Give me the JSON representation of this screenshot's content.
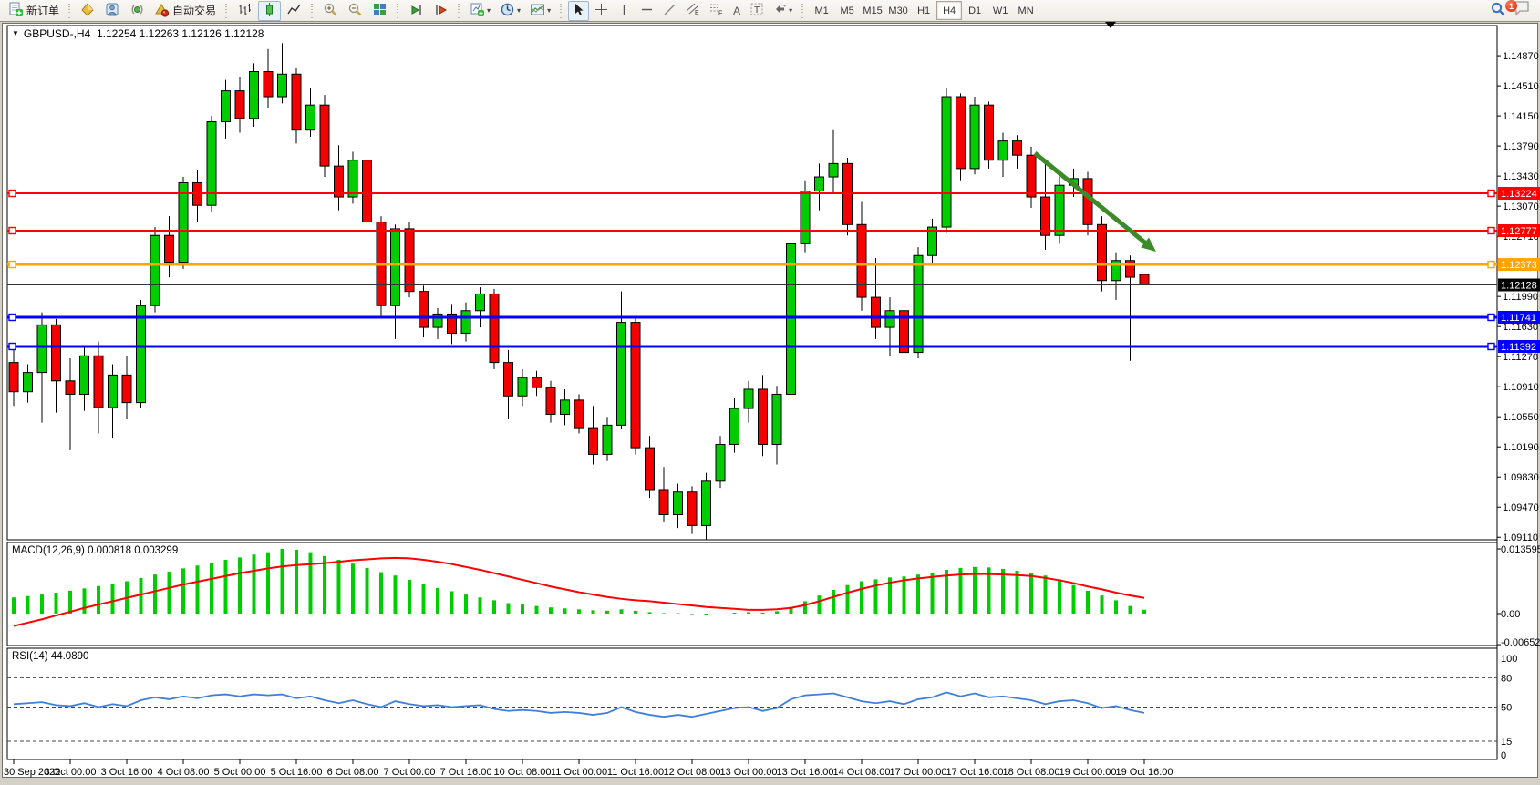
{
  "toolbar": {
    "new_order_label": "新订单",
    "autotrading_label": "自动交易",
    "chart_mode_active": "candlestick",
    "timeframes": [
      "M1",
      "M5",
      "M15",
      "M30",
      "H1",
      "H4",
      "D1",
      "W1",
      "MN"
    ],
    "active_timeframe": "H4",
    "notification_badge": "1"
  },
  "chart": {
    "title": "GBPUSD-,H4",
    "ohlc_text": "1.12254 1.12263 1.12126 1.12128",
    "colors": {
      "up": "#00CC00",
      "down": "#F50000",
      "wick": "#000000",
      "macd_hist": "#00CC00",
      "macd_signal": "#FF0000",
      "rsi": "#3F7FDB",
      "arrow": "#3D8B27",
      "line_red": "#FF0000",
      "line_orange": "#FFA500",
      "line_blue": "#0000FF",
      "bid_line": "#333333",
      "bid_label_bg": "#000000"
    },
    "price_axis_ticks": [
      "1.14870",
      "1.14510",
      "1.14150",
      "1.13790",
      "1.13430",
      "1.13070",
      "1.12710",
      "1.11990",
      "1.11630",
      "1.11270",
      "1.10910",
      "1.10550",
      "1.10190",
      "1.09830",
      "1.09470",
      "1.09110"
    ],
    "time_axis_labels": [
      "30 Sep 2022",
      "3 Oct 00:00",
      "3 Oct 16:00",
      "4 Oct 08:00",
      "5 Oct 00:00",
      "5 Oct 16:00",
      "6 Oct 08:00",
      "7 Oct 00:00",
      "7 Oct 16:00",
      "10 Oct 08:00",
      "11 Oct 00:00",
      "11 Oct 16:00",
      "12 Oct 08:00",
      "13 Oct 00:00",
      "13 Oct 16:00",
      "14 Oct 08:00",
      "17 Oct 00:00",
      "17 Oct 16:00",
      "18 Oct 08:00",
      "19 Oct 00:00",
      "19 Oct 16:00"
    ],
    "hlines": [
      {
        "price": 1.13224,
        "label": "1.13224",
        "color": "#FF0000",
        "width": 2
      },
      {
        "price": 1.12777,
        "label": "1.12777",
        "color": "#FF0000",
        "width": 2
      },
      {
        "price": 1.12373,
        "label": "1.12373",
        "color": "#FFA500",
        "width": 3
      },
      {
        "price": 1.11741,
        "label": "1.11741",
        "color": "#0000FF",
        "width": 3
      },
      {
        "price": 1.11392,
        "label": "1.11392",
        "color": "#0000FF",
        "width": 3
      }
    ],
    "current_price": {
      "price": 1.12128,
      "label": "1.12128"
    }
  },
  "chart_data": {
    "type": "candlestick",
    "symbol": "GBPUSD-",
    "timeframe": "H4",
    "ohlc_current": {
      "open": "1.12254",
      "high": "1.12263",
      "low": "1.12126",
      "close": "1.12128"
    },
    "ylim": [
      1.0908,
      1.151
    ],
    "candles": [
      [
        "30 Sep 08:00",
        1.112,
        1.1135,
        1.1068,
        1.1085
      ],
      [
        "30 Sep 12:00",
        1.1085,
        1.1118,
        1.1072,
        1.1108
      ],
      [
        "30 Sep 16:00",
        1.1108,
        1.118,
        1.1048,
        1.1165
      ],
      [
        "30 Sep 20:00",
        1.1165,
        1.1172,
        1.106,
        1.1098
      ],
      [
        "3 Oct 00:00",
        1.1098,
        1.1125,
        1.1015,
        1.1082
      ],
      [
        "3 Oct 04:00",
        1.1082,
        1.114,
        1.1062,
        1.1128
      ],
      [
        "3 Oct 08:00",
        1.1128,
        1.1145,
        1.1035,
        1.1066
      ],
      [
        "3 Oct 12:00",
        1.1066,
        1.1118,
        1.103,
        1.1105
      ],
      [
        "3 Oct 16:00",
        1.1105,
        1.1128,
        1.1052,
        1.1072
      ],
      [
        "3 Oct 20:00",
        1.1072,
        1.1195,
        1.1065,
        1.1188
      ],
      [
        "4 Oct 00:00",
        1.1188,
        1.1282,
        1.118,
        1.1272
      ],
      [
        "4 Oct 04:00",
        1.1272,
        1.1295,
        1.1222,
        1.124
      ],
      [
        "4 Oct 08:00",
        1.124,
        1.1342,
        1.1232,
        1.1335
      ],
      [
        "4 Oct 12:00",
        1.1335,
        1.135,
        1.1288,
        1.1308
      ],
      [
        "4 Oct 16:00",
        1.1308,
        1.1415,
        1.13,
        1.1408
      ],
      [
        "4 Oct 20:00",
        1.1408,
        1.1458,
        1.1388,
        1.1445
      ],
      [
        "5 Oct 00:00",
        1.1445,
        1.1462,
        1.1395,
        1.1412
      ],
      [
        "5 Oct 04:00",
        1.1412,
        1.1478,
        1.1402,
        1.1468
      ],
      [
        "5 Oct 08:00",
        1.1468,
        1.1495,
        1.1425,
        1.1438
      ],
      [
        "5 Oct 12:00",
        1.1438,
        1.1502,
        1.143,
        1.1465
      ],
      [
        "5 Oct 16:00",
        1.1465,
        1.1472,
        1.1382,
        1.1398
      ],
      [
        "5 Oct 20:00",
        1.1398,
        1.1448,
        1.139,
        1.1428
      ],
      [
        "6 Oct 00:00",
        1.1428,
        1.144,
        1.1342,
        1.1355
      ],
      [
        "6 Oct 04:00",
        1.1355,
        1.138,
        1.1302,
        1.1318
      ],
      [
        "6 Oct 08:00",
        1.1318,
        1.1372,
        1.131,
        1.1362
      ],
      [
        "6 Oct 12:00",
        1.1362,
        1.1378,
        1.1275,
        1.1288
      ],
      [
        "6 Oct 16:00",
        1.1288,
        1.1295,
        1.1175,
        1.1188
      ],
      [
        "6 Oct 20:00",
        1.1188,
        1.1285,
        1.1148,
        1.128
      ],
      [
        "7 Oct 00:00",
        1.128,
        1.1288,
        1.1198,
        1.1205
      ],
      [
        "7 Oct 04:00",
        1.1205,
        1.1212,
        1.115,
        1.1162
      ],
      [
        "7 Oct 08:00",
        1.1162,
        1.1185,
        1.1148,
        1.1178
      ],
      [
        "7 Oct 12:00",
        1.1178,
        1.119,
        1.1142,
        1.1155
      ],
      [
        "7 Oct 16:00",
        1.1155,
        1.1192,
        1.1145,
        1.1182
      ],
      [
        "7 Oct 20:00",
        1.1182,
        1.121,
        1.1162,
        1.1202
      ],
      [
        "10 Oct 00:00",
        1.1202,
        1.1208,
        1.1112,
        1.112
      ],
      [
        "10 Oct 04:00",
        1.112,
        1.1135,
        1.1052,
        1.108
      ],
      [
        "10 Oct 08:00",
        1.108,
        1.1112,
        1.1068,
        1.1102
      ],
      [
        "10 Oct 12:00",
        1.1102,
        1.111,
        1.108,
        1.109
      ],
      [
        "10 Oct 16:00",
        1.109,
        1.1098,
        1.1048,
        1.1058
      ],
      [
        "10 Oct 20:00",
        1.1058,
        1.1088,
        1.1045,
        1.1075
      ],
      [
        "11 Oct 00:00",
        1.1075,
        1.1082,
        1.1035,
        1.1042
      ],
      [
        "11 Oct 04:00",
        1.1042,
        1.1068,
        1.0998,
        1.101
      ],
      [
        "11 Oct 08:00",
        1.101,
        1.1055,
        1.1002,
        1.1045
      ],
      [
        "11 Oct 12:00",
        1.1045,
        1.1205,
        1.104,
        1.1168
      ],
      [
        "11 Oct 16:00",
        1.1168,
        1.1175,
        1.101,
        1.1018
      ],
      [
        "11 Oct 20:00",
        1.1018,
        1.1032,
        1.0958,
        1.0968
      ],
      [
        "12 Oct 00:00",
        1.0968,
        1.0995,
        1.093,
        1.0938
      ],
      [
        "12 Oct 04:00",
        1.0938,
        1.0975,
        1.0922,
        1.0965
      ],
      [
        "12 Oct 08:00",
        1.0965,
        1.0972,
        1.0915,
        1.0925
      ],
      [
        "12 Oct 12:00",
        1.0925,
        1.0988,
        1.0908,
        1.0978
      ],
      [
        "12 Oct 16:00",
        1.0978,
        1.1032,
        1.097,
        1.1022
      ],
      [
        "12 Oct 20:00",
        1.1022,
        1.1078,
        1.1012,
        1.1065
      ],
      [
        "13 Oct 00:00",
        1.1065,
        1.1098,
        1.1048,
        1.1088
      ],
      [
        "13 Oct 04:00",
        1.1088,
        1.1105,
        1.1008,
        1.1022
      ],
      [
        "13 Oct 08:00",
        1.1022,
        1.1092,
        1.0998,
        1.1082
      ],
      [
        "13 Oct 12:00",
        1.1082,
        1.1275,
        1.1075,
        1.1262
      ],
      [
        "13 Oct 16:00",
        1.1262,
        1.1338,
        1.1252,
        1.1325
      ],
      [
        "13 Oct 20:00",
        1.1325,
        1.1358,
        1.1302,
        1.1342
      ],
      [
        "14 Oct 00:00",
        1.1342,
        1.1398,
        1.1322,
        1.1358
      ],
      [
        "14 Oct 04:00",
        1.1358,
        1.1365,
        1.1272,
        1.1285
      ],
      [
        "14 Oct 08:00",
        1.1285,
        1.1312,
        1.1182,
        1.1198
      ],
      [
        "14 Oct 12:00",
        1.1198,
        1.1245,
        1.1148,
        1.1162
      ],
      [
        "14 Oct 16:00",
        1.1162,
        1.1198,
        1.1128,
        1.1182
      ],
      [
        "14 Oct 20:00",
        1.1182,
        1.1215,
        1.1085,
        1.1132
      ],
      [
        "17 Oct 00:00",
        1.1132,
        1.1258,
        1.1125,
        1.1248
      ],
      [
        "17 Oct 04:00",
        1.1248,
        1.1292,
        1.1238,
        1.1282
      ],
      [
        "17 Oct 08:00",
        1.1282,
        1.1448,
        1.1275,
        1.1438
      ],
      [
        "17 Oct 12:00",
        1.1438,
        1.1442,
        1.1338,
        1.1352
      ],
      [
        "17 Oct 16:00",
        1.1352,
        1.1438,
        1.1345,
        1.1428
      ],
      [
        "17 Oct 20:00",
        1.1428,
        1.1432,
        1.1352,
        1.1362
      ],
      [
        "18 Oct 00:00",
        1.1362,
        1.1395,
        1.1342,
        1.1385
      ],
      [
        "18 Oct 04:00",
        1.1385,
        1.1392,
        1.1352,
        1.1368
      ],
      [
        "18 Oct 08:00",
        1.1368,
        1.1378,
        1.1305,
        1.1318
      ],
      [
        "18 Oct 12:00",
        1.1318,
        1.1362,
        1.1255,
        1.1272
      ],
      [
        "18 Oct 16:00",
        1.1272,
        1.1342,
        1.1262,
        1.1332
      ],
      [
        "18 Oct 20:00",
        1.1332,
        1.1352,
        1.1318,
        1.134
      ],
      [
        "19 Oct 00:00",
        1.134,
        1.1348,
        1.1272,
        1.1285
      ],
      [
        "19 Oct 04:00",
        1.1285,
        1.1295,
        1.1205,
        1.1218
      ],
      [
        "19 Oct 08:00",
        1.1218,
        1.1252,
        1.1195,
        1.1242
      ],
      [
        "19 Oct 12:00",
        1.1242,
        1.1248,
        1.1122,
        1.1222
      ],
      [
        "19 Oct 16:00",
        1.12254,
        1.12263,
        1.12126,
        1.12128
      ]
    ],
    "indicators": {
      "macd": {
        "label": "MACD(12,26,9) 0.000818 0.003299",
        "params": "12,26,9",
        "value_main": "0.000818",
        "value_signal": "0.003299",
        "axis_labels": [
          "0.013595",
          "0.00",
          "-0.00652"
        ],
        "axis_values": [
          0.013595,
          0.0,
          -0.00652
        ],
        "ylim": [
          -0.0067,
          0.014936
        ],
        "histogram": [
          0.0034,
          0.0037,
          0.004,
          0.0044,
          0.0048,
          0.0053,
          0.0058,
          0.0063,
          0.0068,
          0.0075,
          0.0082,
          0.0088,
          0.0095,
          0.0101,
          0.0107,
          0.0113,
          0.0118,
          0.0124,
          0.0129,
          0.0136,
          0.0134,
          0.0129,
          0.0121,
          0.0113,
          0.0105,
          0.0096,
          0.0087,
          0.008,
          0.0071,
          0.0062,
          0.0054,
          0.0047,
          0.004,
          0.0034,
          0.0028,
          0.0022,
          0.0019,
          0.0016,
          0.0013,
          0.0011,
          0.0009,
          0.0007,
          0.0006,
          0.0009,
          0.0006,
          0.0003,
          0.0001,
          0.0001,
          -0.0001,
          -0.0002,
          0.0,
          0.0002,
          0.0003,
          0.0002,
          0.0005,
          0.0014,
          0.0026,
          0.0038,
          0.005,
          0.006,
          0.0068,
          0.0072,
          0.0076,
          0.0078,
          0.0082,
          0.0086,
          0.0092,
          0.0096,
          0.0098,
          0.0097,
          0.0094,
          0.009,
          0.0085,
          0.008,
          0.0072,
          0.006,
          0.0048,
          0.0038,
          0.0028,
          0.0016,
          0.000818
        ],
        "signal": [
          -0.0026,
          -0.0019,
          -0.0012,
          -0.0004,
          0.0004,
          0.0012,
          0.0019,
          0.0026,
          0.0033,
          0.004,
          0.0047,
          0.0054,
          0.0061,
          0.0067,
          0.0073,
          0.0079,
          0.0085,
          0.009,
          0.0095,
          0.0099,
          0.0102,
          0.0104,
          0.0106,
          0.0109,
          0.0112,
          0.0114,
          0.0116,
          0.0117,
          0.0116,
          0.0113,
          0.0109,
          0.0104,
          0.0098,
          0.0092,
          0.0085,
          0.0078,
          0.0071,
          0.0064,
          0.0057,
          0.0051,
          0.0045,
          0.004,
          0.0035,
          0.0031,
          0.0028,
          0.0026,
          0.0023,
          0.002,
          0.0017,
          0.0014,
          0.0012,
          0.001,
          0.0008,
          0.0008,
          0.0009,
          0.0012,
          0.0018,
          0.0026,
          0.0035,
          0.0044,
          0.0052,
          0.0059,
          0.0065,
          0.007,
          0.0074,
          0.0077,
          0.008,
          0.0082,
          0.0083,
          0.0083,
          0.0082,
          0.0081,
          0.0079,
          0.0075,
          0.007,
          0.0064,
          0.0057,
          0.0051,
          0.0044,
          0.0038,
          0.003299
        ]
      },
      "rsi": {
        "label": "RSI(14) 44.0890",
        "period": "14",
        "value": "44.0890",
        "axis_labels": [
          "100",
          "80",
          "50",
          "15",
          "0"
        ],
        "levels": [
          80,
          50,
          15
        ],
        "ylim": [
          0,
          100
        ],
        "values": [
          53,
          54,
          55,
          52,
          51,
          54,
          50,
          53,
          51,
          57,
          60,
          58,
          61,
          59,
          62,
          63,
          61,
          63,
          62,
          63,
          59,
          61,
          57,
          54,
          57,
          53,
          50,
          56,
          53,
          51,
          52,
          50,
          51,
          52,
          48,
          46,
          47,
          46,
          44,
          45,
          44,
          42,
          44,
          50,
          45,
          42,
          40,
          42,
          40,
          43,
          46,
          49,
          50,
          46,
          49,
          58,
          62,
          63,
          64,
          60,
          56,
          54,
          56,
          53,
          58,
          60,
          65,
          61,
          64,
          60,
          61,
          59,
          57,
          53,
          56,
          57,
          54,
          49,
          51,
          47,
          44.089
        ]
      }
    },
    "annotations": [
      {
        "type": "arrow",
        "from_xy": [
          1135,
          168
        ],
        "to_xy": [
          1268,
          276
        ],
        "color": "#3D8B27"
      }
    ]
  }
}
